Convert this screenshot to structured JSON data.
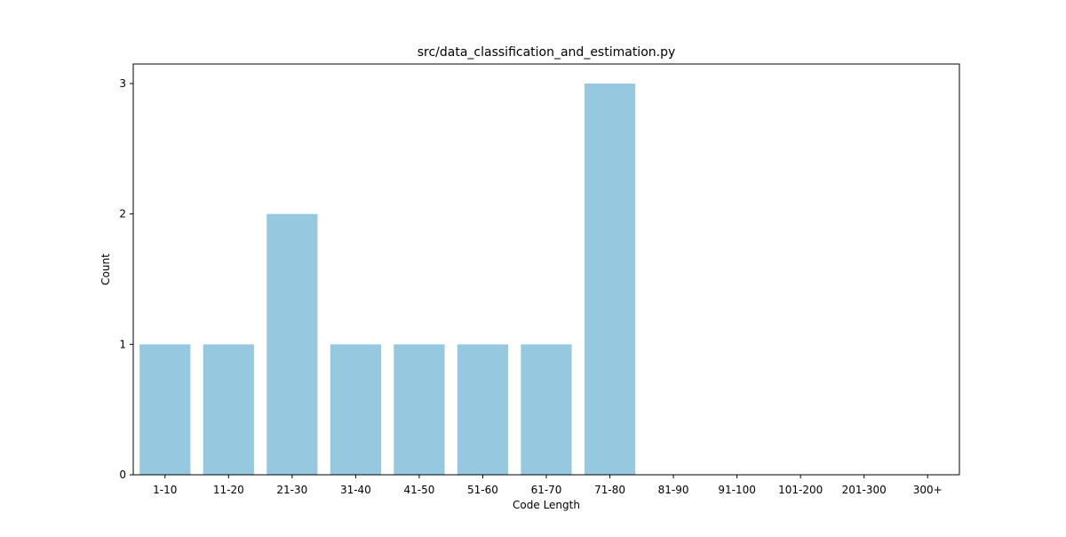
{
  "chart_data": {
    "type": "bar",
    "title": "src/data_classification_and_estimation.py",
    "xlabel": "Code Length",
    "ylabel": "Count",
    "categories": [
      "1-10",
      "11-20",
      "21-30",
      "31-40",
      "41-50",
      "51-60",
      "61-70",
      "71-80",
      "81-90",
      "91-100",
      "101-200",
      "201-300",
      "300+"
    ],
    "values": [
      1,
      1,
      2,
      1,
      1,
      1,
      1,
      3,
      0,
      0,
      0,
      0,
      0
    ],
    "ylim": [
      0,
      3.15
    ],
    "yticks": [
      0,
      1,
      2,
      3
    ],
    "grid": false,
    "bar_color": "#96c9df"
  }
}
